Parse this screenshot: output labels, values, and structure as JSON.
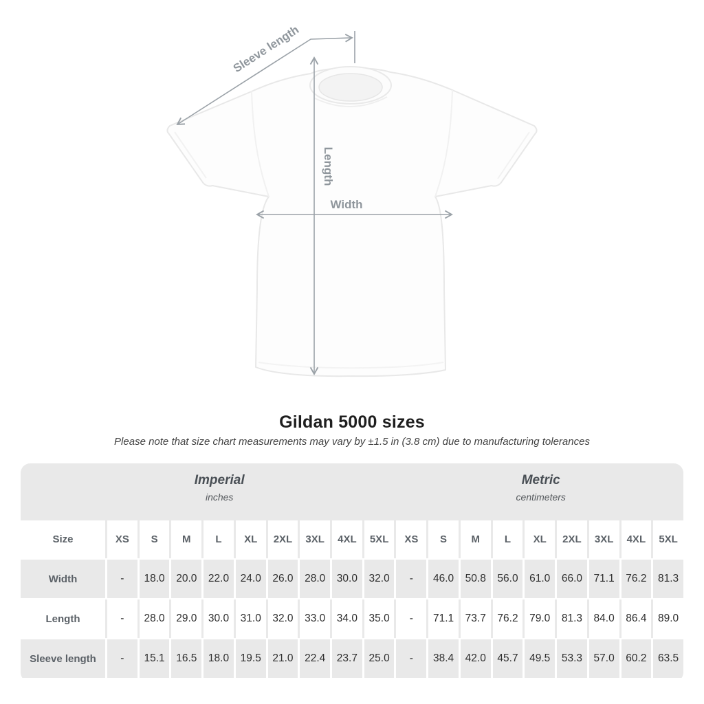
{
  "diagram": {
    "labels": {
      "sleeve_length": "Sleeve length",
      "length": "Length",
      "width": "Width"
    },
    "arrow_color": "#9ba2a8",
    "label_color": "#8f969c"
  },
  "title": "Gildan 5000 sizes",
  "note": "Please note that size chart measurements may vary by ±1.5 in (3.8 cm) due to manufacturing tolerances",
  "table": {
    "unit_groups": [
      {
        "label": "Imperial",
        "sublabel": "inches"
      },
      {
        "label": "Metric",
        "sublabel": "centimeters"
      }
    ],
    "size_header": "Size",
    "sizes": [
      "XS",
      "S",
      "M",
      "L",
      "XL",
      "2XL",
      "3XL",
      "4XL",
      "5XL"
    ],
    "rows": [
      {
        "label": "Width",
        "imperial": [
          "-",
          "18.0",
          "20.0",
          "22.0",
          "24.0",
          "26.0",
          "28.0",
          "30.0",
          "32.0"
        ],
        "metric": [
          "-",
          "46.0",
          "50.8",
          "56.0",
          "61.0",
          "66.0",
          "71.1",
          "76.2",
          "81.3"
        ]
      },
      {
        "label": "Length",
        "imperial": [
          "-",
          "28.0",
          "29.0",
          "30.0",
          "31.0",
          "32.0",
          "33.0",
          "34.0",
          "35.0"
        ],
        "metric": [
          "-",
          "71.1",
          "73.7",
          "76.2",
          "79.0",
          "81.3",
          "84.0",
          "86.4",
          "89.0"
        ]
      },
      {
        "label": "Sleeve length",
        "imperial": [
          "-",
          "15.1",
          "16.5",
          "18.0",
          "19.5",
          "21.0",
          "22.4",
          "23.7",
          "25.0"
        ],
        "metric": [
          "-",
          "38.4",
          "42.0",
          "45.7",
          "49.5",
          "53.3",
          "57.0",
          "60.2",
          "63.5"
        ]
      }
    ],
    "colors": {
      "band_gray": "#e9e9e9",
      "header_text": "#5b6167",
      "data_text": "#2e2e2e"
    }
  }
}
